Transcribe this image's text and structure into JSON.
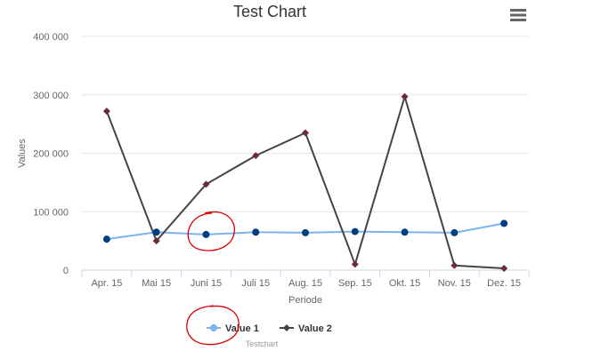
{
  "chart_data": {
    "type": "line",
    "title": "Test Chart",
    "menu_icon": "hamburger-menu-icon",
    "xlabel": "Periode",
    "ylabel": "Values",
    "categories": [
      "Apr. 15",
      "Mai 15",
      "Juni 15",
      "Juli 15",
      "Aug. 15",
      "Sep. 15",
      "Okt. 15",
      "Nov. 15",
      "Dez. 15"
    ],
    "ylim": [
      0,
      400000
    ],
    "yticks": [
      0,
      100000,
      200000,
      300000,
      400000
    ],
    "ytick_labels": [
      "0",
      "100 000",
      "200 000",
      "300 000",
      "400 000"
    ],
    "grid": true,
    "legend_position": "bottom-center",
    "series": [
      {
        "name": "Value 1",
        "color": "#7cb5ec",
        "marker_color": "#003f7f",
        "marker": "circle",
        "values": [
          53000,
          65000,
          61000,
          65000,
          64000,
          66000,
          65000,
          64000,
          80000
        ]
      },
      {
        "name": "Value 2",
        "color": "#434348",
        "marker_color": "#6b2b3f",
        "marker": "diamond",
        "values": [
          272000,
          50000,
          147000,
          196000,
          235000,
          10000,
          297000,
          8000,
          3000
        ]
      }
    ],
    "credits": "Testchart",
    "annotations": [
      {
        "shape": "ellipse",
        "color": "#e00000",
        "target": "Value 1 at Juni 15"
      },
      {
        "shape": "ellipse",
        "color": "#e00000",
        "target": "legend Value 1"
      }
    ]
  }
}
